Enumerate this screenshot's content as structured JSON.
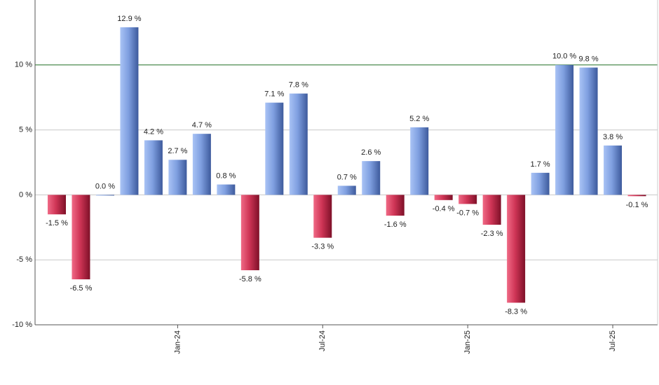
{
  "chart_data": {
    "type": "bar",
    "categories": [
      null,
      null,
      null,
      null,
      null,
      "Jan-24",
      null,
      null,
      null,
      null,
      null,
      "Jul-24",
      null,
      null,
      null,
      null,
      null,
      "Jan-25",
      null,
      null,
      null,
      null,
      null,
      "Jul-25",
      null
    ],
    "values": [
      -1.5,
      -6.5,
      0.0,
      12.9,
      4.2,
      2.7,
      4.7,
      0.8,
      -5.8,
      7.1,
      7.8,
      -3.3,
      0.7,
      2.6,
      -1.6,
      5.2,
      -0.4,
      -0.7,
      -2.3,
      -8.3,
      1.7,
      10.0,
      9.8,
      3.8,
      -0.1
    ],
    "value_labels": [
      "-1.5 %",
      "-6.5 %",
      "0.0 %",
      "12.9 %",
      "4.2 %",
      "2.7 %",
      "4.7 %",
      "0.8 %",
      "-5.8 %",
      "7.1 %",
      "7.8 %",
      "-3.3 %",
      "0.7 %",
      "2.6 %",
      "-1.6 %",
      "5.2 %",
      "-0.4 %",
      "-0.7 %",
      "-2.3 %",
      "-8.3 %",
      "1.7 %",
      "10.0 %",
      "9.8 %",
      "3.8 %",
      "-0.1 %"
    ],
    "positive_color": "#6f8fd6",
    "negative_color": "#c8304f",
    "ylim": [
      -10,
      15
    ],
    "yticks": [
      {
        "value": -10,
        "label": "-10 %"
      },
      {
        "value": -5,
        "label": "-5 %"
      },
      {
        "value": 0,
        "label": "0 %"
      },
      {
        "value": 5,
        "label": "5 %"
      },
      {
        "value": 10,
        "label": "10 %"
      }
    ],
    "grid": true,
    "reference_line": {
      "value": 10,
      "color": "#2e7d32"
    }
  }
}
